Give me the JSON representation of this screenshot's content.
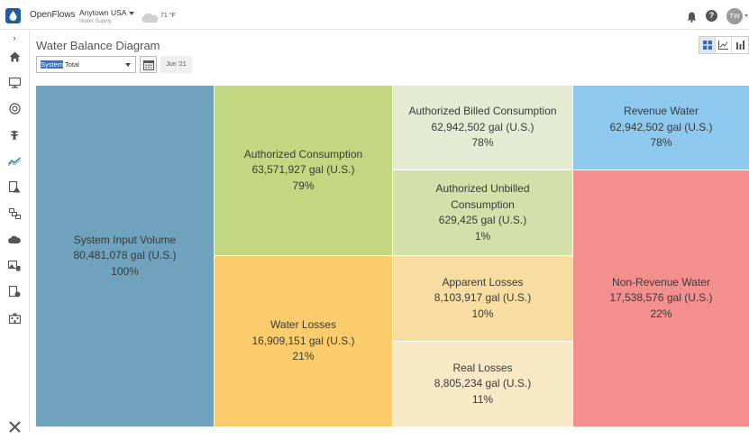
{
  "topbar": {
    "app_name": "OpenFlows",
    "location": "Anytown USA",
    "location_sub": "Water Supply",
    "temperature": "71 °F",
    "avatar_initials": "TW",
    "help_label": "?"
  },
  "sidebar": {
    "expand_label": "›",
    "items": [
      "home-icon",
      "monitor-icon",
      "meter-icon",
      "hydrant-icon",
      "chart-line-icon",
      "alert-doc-icon",
      "map-icon",
      "cloud-icon",
      "image-icon",
      "doc-settings-icon",
      "building-icon",
      "tools-icon"
    ]
  },
  "page": {
    "title": "Water Balance Diagram",
    "system_select": {
      "highlight": "System",
      "rest": " Total"
    },
    "month": "Jun '21"
  },
  "view_buttons": [
    "grid-view-icon",
    "line-chart-icon",
    "bar-chart-icon"
  ],
  "tiles": {
    "system_input": {
      "name": "System Input Volume",
      "value": "80,481,078 gal (U.S.)",
      "pct": "100%",
      "color": "#6fa3bd"
    },
    "authorized": {
      "name": "Authorized Consumption",
      "value": "63,571,927 gal (U.S.)",
      "pct": "79%",
      "color": "#c3d781"
    },
    "water_losses": {
      "name": "Water Losses",
      "value": "16,909,151 gal (U.S.)",
      "pct": "21%",
      "color": "#fbcc6b"
    },
    "billed": {
      "name": "Authorized Billed Consumption",
      "value": "62,942,502 gal (U.S.)",
      "pct": "78%",
      "color": "#e5ebd2"
    },
    "unbilled": {
      "name": "Authorized Unbilled Consumption",
      "value": "629,425 gal (U.S.)",
      "pct": "1%",
      "color": "#d3e0a9"
    },
    "apparent": {
      "name": "Apparent Losses",
      "value": "8,103,917 gal (U.S.)",
      "pct": "10%",
      "color": "#f7dda2"
    },
    "real": {
      "name": "Real Losses",
      "value": "8,805,234 gal (U.S.)",
      "pct": "11%",
      "color": "#f7e8c6"
    },
    "revenue": {
      "name": "Revenue Water",
      "value": "62,942,502 gal (U.S.)",
      "pct": "78%",
      "color": "#8dc8ee"
    },
    "non_revenue": {
      "name": "Non-Revenue Water",
      "value": "17,538,576 gal (U.S.)",
      "pct": "22%",
      "color": "#f38f8e"
    }
  }
}
